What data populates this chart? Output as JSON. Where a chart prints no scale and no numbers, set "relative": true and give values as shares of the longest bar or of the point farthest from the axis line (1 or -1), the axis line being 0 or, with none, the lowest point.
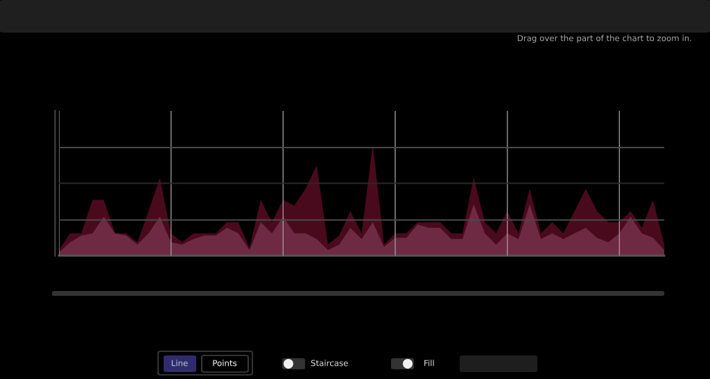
{
  "chart_data": {
    "type": "area",
    "relative": true,
    "categories": [
      null,
      null,
      null,
      null,
      null,
      null,
      null,
      null,
      null,
      null,
      null,
      null,
      null,
      null,
      null,
      null,
      null,
      null,
      null,
      null,
      null,
      null,
      null,
      null,
      null,
      null,
      null,
      null,
      null,
      null,
      null,
      null,
      null,
      null,
      null,
      null,
      null,
      null,
      null,
      null,
      null,
      null,
      null,
      null,
      null,
      null,
      null,
      null,
      null,
      null,
      null,
      null,
      null,
      null,
      null
    ],
    "series": [
      {
        "color": "#4a0a1e",
        "values": [
          0.05,
          0.2,
          0.2,
          0.5,
          0.5,
          0.2,
          0.2,
          0.12,
          0.4,
          0.7,
          0.2,
          0.12,
          0.2,
          0.2,
          0.2,
          0.3,
          0.3,
          0.07,
          0.5,
          0.3,
          0.5,
          0.45,
          0.6,
          0.81,
          0.1,
          0.18,
          0.4,
          0.2,
          1,
          0.1,
          0.2,
          0.2,
          0.3,
          0.3,
          0.3,
          0.2,
          0.2,
          0.7,
          0.3,
          0.2,
          0.4,
          0.2,
          0.6,
          0.2,
          0.3,
          0.2,
          0.4,
          0.6,
          0.4,
          0.3,
          0.3,
          0.4,
          0.25,
          0.5,
          0.1
        ]
      },
      {
        "color": "#6e2a43",
        "values": [
          0.03,
          0.12,
          0.18,
          0.2,
          0.35,
          0.2,
          0.18,
          0.1,
          0.2,
          0.35,
          0.12,
          0.1,
          0.15,
          0.18,
          0.18,
          0.25,
          0.2,
          0.05,
          0.3,
          0.2,
          0.35,
          0.2,
          0.2,
          0.15,
          0.05,
          0.1,
          0.25,
          0.15,
          0.3,
          0.08,
          0.16,
          0.16,
          0.28,
          0.25,
          0.25,
          0.15,
          0.15,
          0.46,
          0.2,
          0.1,
          0.2,
          0.15,
          0.46,
          0.15,
          0.2,
          0.15,
          0.2,
          0.25,
          0.16,
          0.12,
          0.2,
          0.35,
          0.2,
          0.16,
          0.05
        ]
      }
    ],
    "ref_lines": [
      {
        "axis": "y",
        "value": 0.32,
        "color": "#4a4a4a"
      },
      {
        "axis": "y",
        "value": 0.65,
        "color": "#2a2a2a"
      },
      {
        "axis": "y",
        "value": 0.97,
        "color": "#4a4a4a"
      }
    ],
    "grid": "x",
    "annotations": [
      "Drag over the part of the chart to zoom in.",
      "Line",
      "Points",
      "Staircase",
      "Fill"
    ]
  }
}
